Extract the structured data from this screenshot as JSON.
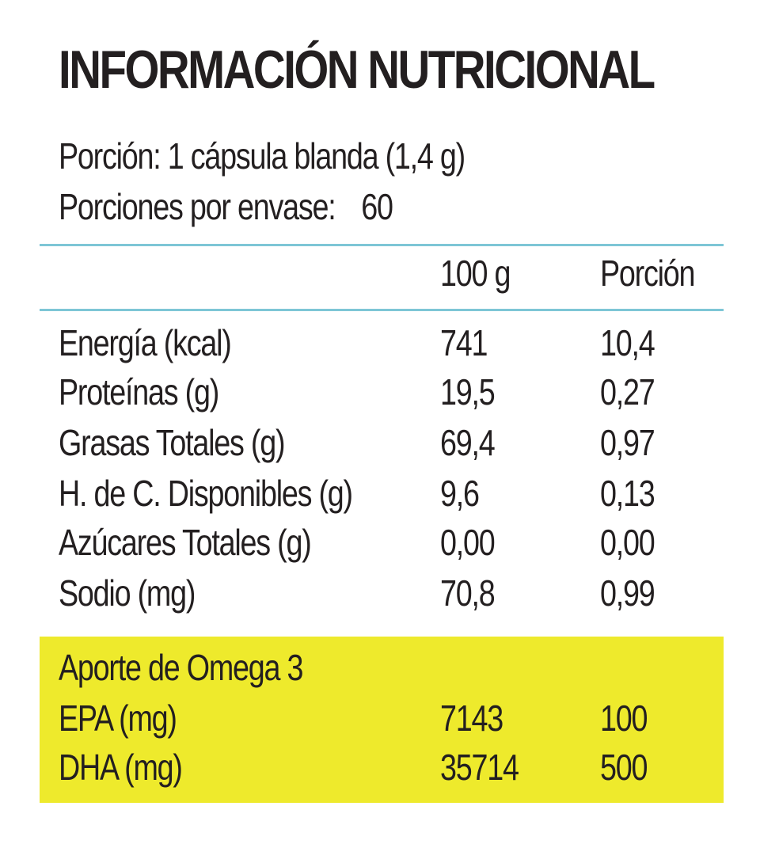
{
  "title": "INFORMACIÓN NUTRICIONAL",
  "serving": "Porción: 1 cápsula blanda (1,4 g)",
  "servings_label": "Porciones por envase:",
  "servings_value": "60",
  "columns": {
    "per100": "100 g",
    "portion": "Porción"
  },
  "rows": [
    {
      "label": "Energía (kcal)",
      "per100": "741",
      "portion": "10,4"
    },
    {
      "label": "Proteínas (g)",
      "per100": "19,5",
      "portion": "0,27"
    },
    {
      "label": "Grasas Totales (g)",
      "per100": "69,4",
      "portion": "0,97"
    },
    {
      "label": "H. de C. Disponibles (g)",
      "per100": "9,6",
      "portion": "0,13"
    },
    {
      "label": "Azúcares Totales (g)",
      "per100": "0,00",
      "portion": "0,00"
    },
    {
      "label": "Sodio (mg)",
      "per100": "70,8",
      "portion": "0,99"
    }
  ],
  "omega": {
    "title": "Aporte de Omega 3",
    "rows": [
      {
        "label": "EPA (mg)",
        "per100": "7143",
        "portion": "100"
      },
      {
        "label": "DHA (mg)",
        "per100": "35714",
        "portion": "500"
      }
    ]
  },
  "colors": {
    "text": "#231f20",
    "rule": "#7ec6d6",
    "highlight": "#eeea2c"
  }
}
